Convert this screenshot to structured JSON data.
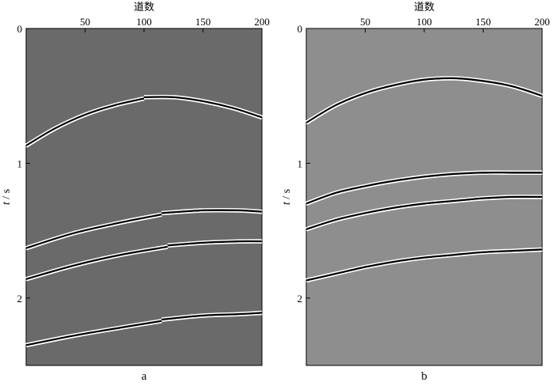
{
  "chart_data": [
    {
      "type": "line",
      "panel_label": "a",
      "xlabel": "道数",
      "ylabel_var": "t",
      "ylabel_unit": " / s",
      "xlim": [
        0,
        200
      ],
      "ylim": [
        0,
        2.5
      ],
      "x_ticks": [
        50,
        100,
        150,
        200
      ],
      "y_ticks": [
        0,
        1,
        2
      ],
      "background": "#6a6a6a",
      "grid": false,
      "series": [
        {
          "x": [
            0,
            25,
            50,
            75,
            100
          ],
          "y": [
            0.87,
            0.74,
            0.64,
            0.57,
            0.52
          ]
        },
        {
          "x": [
            100,
            125,
            150,
            175,
            200
          ],
          "y": [
            0.51,
            0.51,
            0.54,
            0.59,
            0.66
          ]
        },
        {
          "x": [
            0,
            40,
            80,
            115
          ],
          "y": [
            1.63,
            1.52,
            1.44,
            1.38
          ]
        },
        {
          "x": [
            115,
            150,
            180,
            200
          ],
          "y": [
            1.37,
            1.35,
            1.35,
            1.36
          ]
        },
        {
          "x": [
            0,
            40,
            80,
            120
          ],
          "y": [
            1.86,
            1.76,
            1.68,
            1.62
          ]
        },
        {
          "x": [
            120,
            150,
            180,
            200
          ],
          "y": [
            1.61,
            1.59,
            1.58,
            1.58
          ]
        },
        {
          "x": [
            0,
            40,
            80,
            115
          ],
          "y": [
            2.35,
            2.28,
            2.22,
            2.17
          ]
        },
        {
          "x": [
            115,
            150,
            180,
            200
          ],
          "y": [
            2.16,
            2.13,
            2.12,
            2.11
          ]
        }
      ]
    },
    {
      "type": "line",
      "panel_label": "b",
      "xlabel": "道数",
      "ylabel_var": "t",
      "ylabel_unit": " / s",
      "xlim": [
        0,
        200
      ],
      "ylim": [
        0,
        2.5
      ],
      "x_ticks": [
        50,
        100,
        150,
        200
      ],
      "y_ticks": [
        0,
        1,
        2
      ],
      "background": "#8e8e8e",
      "grid": false,
      "series": [
        {
          "x": [
            0,
            25,
            50,
            75,
            100,
            125,
            150,
            175,
            200
          ],
          "y": [
            0.7,
            0.57,
            0.48,
            0.42,
            0.38,
            0.37,
            0.39,
            0.43,
            0.5
          ]
        },
        {
          "x": [
            0,
            25,
            50,
            75,
            100,
            125,
            150,
            175,
            200
          ],
          "y": [
            1.3,
            1.22,
            1.17,
            1.13,
            1.1,
            1.08,
            1.07,
            1.07,
            1.07
          ]
        },
        {
          "x": [
            0,
            25,
            50,
            75,
            100,
            125,
            150,
            175,
            200
          ],
          "y": [
            1.49,
            1.42,
            1.37,
            1.33,
            1.3,
            1.28,
            1.26,
            1.25,
            1.25
          ]
        },
        {
          "x": [
            0,
            25,
            50,
            75,
            100,
            125,
            150,
            175,
            200
          ],
          "y": [
            1.87,
            1.82,
            1.77,
            1.73,
            1.7,
            1.68,
            1.66,
            1.65,
            1.64
          ]
        }
      ]
    }
  ]
}
